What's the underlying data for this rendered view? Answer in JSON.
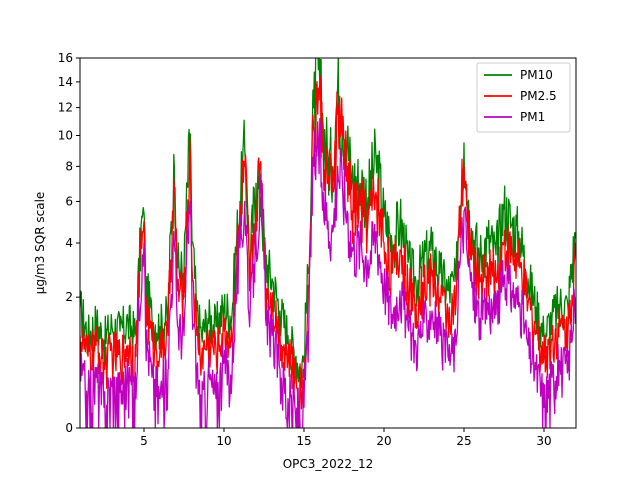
{
  "chart_data": {
    "type": "line",
    "xlabel": "OPC3_2022_12",
    "ylabel": "μg/m3 SQR scale",
    "y_scale": "sqrt",
    "xlim": [
      1,
      32
    ],
    "ylim": [
      0,
      16
    ],
    "x_ticks": [
      5,
      10,
      15,
      20,
      25,
      30
    ],
    "y_ticks": [
      0,
      2,
      4,
      6,
      8,
      10,
      12,
      14,
      16
    ],
    "grid": false,
    "legend_position": "upper right",
    "series": [
      {
        "name": "PM10",
        "color": "#008000",
        "x": [
          1,
          1.5,
          2,
          2.5,
          3,
          3.5,
          4,
          4.5,
          4.9,
          5.0,
          5.1,
          5.5,
          6,
          6.5,
          6.9,
          7.1,
          7.5,
          7.9,
          8.0,
          8.3,
          8.6,
          9,
          9.5,
          10,
          10.5,
          11,
          11.3,
          11.6,
          12,
          12.3,
          12.6,
          13,
          13.5,
          14,
          14.5,
          14.8,
          15.0,
          15.3,
          15.6,
          15.9,
          16.2,
          16.5,
          16.8,
          17.1,
          17.4,
          17.7,
          18,
          18.5,
          19,
          19.5,
          20,
          20.5,
          21,
          21.5,
          22,
          22.5,
          23,
          23.5,
          24,
          24.5,
          25,
          25.2,
          25.5,
          26,
          26.5,
          27,
          27.5,
          28,
          28.5,
          29,
          29.5,
          30,
          30.5,
          31,
          31.5,
          32
        ],
        "values": [
          1.7,
          1.0,
          1.3,
          0.9,
          1.2,
          1.1,
          1.3,
          1.0,
          5.2,
          5.4,
          2.4,
          1.4,
          1.2,
          1.5,
          7.9,
          3.0,
          2.8,
          10.1,
          4.0,
          1.6,
          1.0,
          1.4,
          1.2,
          1.7,
          1.5,
          6.0,
          9.0,
          3.0,
          7.0,
          6.2,
          3.2,
          2.6,
          1.6,
          1.0,
          0.6,
          0.4,
          0.6,
          3.0,
          12.0,
          15.0,
          10.5,
          8.5,
          8.0,
          13.5,
          11.0,
          9.5,
          7.2,
          7.0,
          6.2,
          8.5,
          5.2,
          4.0,
          5.0,
          3.2,
          2.5,
          3.3,
          3.7,
          2.8,
          2.2,
          2.5,
          9.5,
          6.0,
          4.5,
          3.4,
          4.2,
          3.5,
          5.6,
          4.8,
          4.2,
          2.6,
          1.7,
          1.0,
          1.4,
          1.8,
          1.7,
          4.5
        ]
      },
      {
        "name": "PM2.5",
        "color": "#ff0000",
        "x": [
          1,
          1.5,
          2,
          2.5,
          3,
          3.5,
          4,
          4.5,
          4.9,
          5.0,
          5.1,
          5.5,
          6,
          6.5,
          6.9,
          7.1,
          7.5,
          7.9,
          8.0,
          8.3,
          8.6,
          9,
          9.5,
          10,
          10.5,
          11,
          11.3,
          11.6,
          12,
          12.3,
          12.6,
          13,
          13.5,
          14,
          14.5,
          14.8,
          15.0,
          15.3,
          15.6,
          15.9,
          16.2,
          16.5,
          16.8,
          17.1,
          17.4,
          17.7,
          18,
          18.5,
          19,
          19.5,
          20,
          20.5,
          21,
          21.5,
          22,
          22.5,
          23,
          23.5,
          24,
          24.5,
          25,
          25.2,
          25.5,
          26,
          26.5,
          27,
          27.5,
          28,
          28.5,
          29,
          29.5,
          30,
          30.5,
          31,
          31.5,
          32
        ],
        "values": [
          1.0,
          0.6,
          0.8,
          0.5,
          0.7,
          0.6,
          0.8,
          0.6,
          4.5,
          5.0,
          1.8,
          0.9,
          0.7,
          1.0,
          6.5,
          2.2,
          2.0,
          8.5,
          3.0,
          1.0,
          0.6,
          0.9,
          0.7,
          1.1,
          0.9,
          5.0,
          8.0,
          2.2,
          5.5,
          8.3,
          2.4,
          1.9,
          1.0,
          0.6,
          0.3,
          0.2,
          0.3,
          2.2,
          10.5,
          13.5,
          9.0,
          7.0,
          6.5,
          11.5,
          10.0,
          8.0,
          5.5,
          5.8,
          5.0,
          6.5,
          4.0,
          2.8,
          3.7,
          2.3,
          1.8,
          2.4,
          2.7,
          2.0,
          1.5,
          1.8,
          8.0,
          5.0,
          3.5,
          2.5,
          3.0,
          2.6,
          4.0,
          3.5,
          3.0,
          1.8,
          1.1,
          0.6,
          0.9,
          1.2,
          1.1,
          3.5
        ]
      },
      {
        "name": "PM1",
        "color": "#bf00bf",
        "x": [
          1,
          1.5,
          2,
          2.5,
          3,
          3.5,
          4,
          4.5,
          4.9,
          5.0,
          5.1,
          5.5,
          6,
          6.5,
          6.9,
          7.1,
          7.5,
          7.9,
          8.0,
          8.3,
          8.6,
          9,
          9.5,
          10,
          10.5,
          11,
          11.3,
          11.6,
          12,
          12.3,
          12.6,
          13,
          13.5,
          14,
          14.5,
          14.8,
          15.0,
          15.3,
          15.6,
          15.9,
          16.2,
          16.5,
          16.8,
          17.1,
          17.4,
          17.7,
          18,
          18.5,
          19,
          19.5,
          20,
          20.5,
          21,
          21.5,
          22,
          22.5,
          23,
          23.5,
          24,
          24.5,
          25,
          25.2,
          25.5,
          26,
          26.5,
          27,
          27.5,
          28,
          28.5,
          29,
          29.5,
          30,
          30.5,
          31,
          31.5,
          32
        ],
        "values": [
          0.4,
          0.1,
          0.3,
          0.05,
          0.2,
          0.15,
          0.3,
          0.1,
          3.5,
          4.0,
          1.0,
          0.3,
          0.1,
          0.4,
          4.0,
          1.2,
          1.0,
          6.0,
          1.8,
          0.4,
          0.0,
          0.3,
          0.1,
          0.5,
          0.3,
          3.8,
          6.0,
          1.2,
          4.0,
          6.5,
          1.4,
          1.0,
          0.4,
          0.1,
          0.0,
          0.0,
          0.05,
          1.2,
          8.0,
          9.5,
          6.5,
          5.0,
          4.5,
          8.0,
          7.0,
          5.5,
          3.8,
          4.0,
          3.3,
          4.5,
          2.5,
          1.5,
          2.2,
          1.2,
          0.8,
          1.3,
          1.6,
          1.0,
          0.6,
          0.8,
          5.5,
          3.5,
          2.3,
          1.4,
          1.8,
          1.5,
          2.6,
          2.2,
          1.8,
          0.8,
          0.4,
          0.05,
          0.3,
          0.5,
          0.4,
          2.0
        ]
      }
    ]
  }
}
